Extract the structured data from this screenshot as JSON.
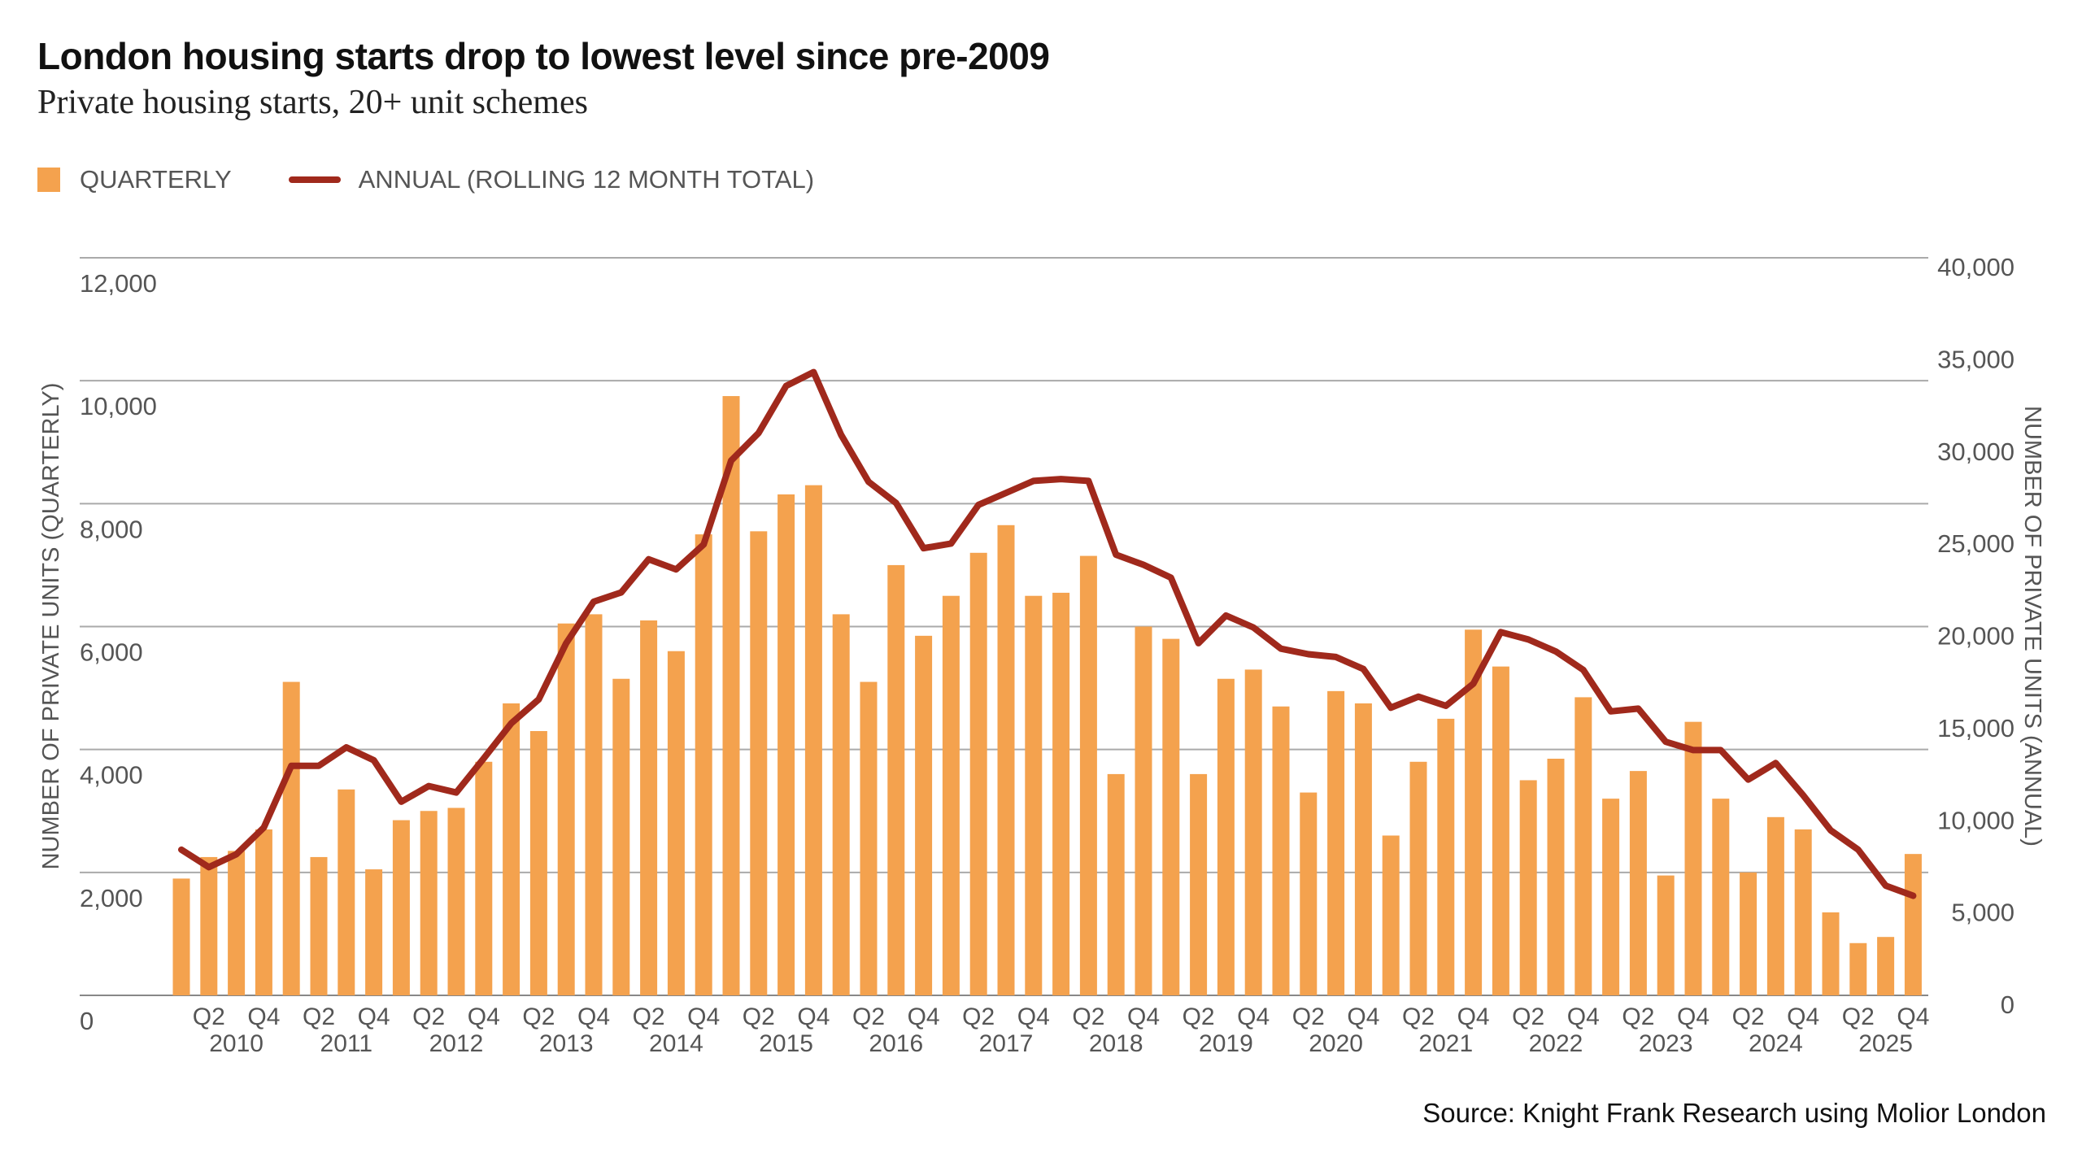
{
  "title": "London housing starts drop to lowest level since pre-2009",
  "subtitle": "Private housing starts, 20+ unit schemes",
  "source": "Source: Knight Frank Research using Molior London",
  "colors": {
    "quarterly": "#F4A24E",
    "annual": "#A0291C",
    "grid": "#999999",
    "text": "#555555"
  },
  "chart_data": {
    "type": "bar+line",
    "legend_position": "top-left",
    "grid": true,
    "categories": [
      "2010 Q1",
      "2010 Q2",
      "2010 Q3",
      "2010 Q4",
      "2011 Q1",
      "2011 Q2",
      "2011 Q3",
      "2011 Q4",
      "2012 Q1",
      "2012 Q2",
      "2012 Q3",
      "2012 Q4",
      "2013 Q1",
      "2013 Q2",
      "2013 Q3",
      "2013 Q4",
      "2014 Q1",
      "2014 Q2",
      "2014 Q3",
      "2014 Q4",
      "2015 Q1",
      "2015 Q2",
      "2015 Q3",
      "2015 Q4",
      "2016 Q1",
      "2016 Q2",
      "2016 Q3",
      "2016 Q4",
      "2017 Q1",
      "2017 Q2",
      "2017 Q3",
      "2017 Q4",
      "2018 Q1",
      "2018 Q2",
      "2018 Q3",
      "2018 Q4",
      "2019 Q1",
      "2019 Q2",
      "2019 Q3",
      "2019 Q4",
      "2020 Q1",
      "2020 Q2",
      "2020 Q3",
      "2020 Q4",
      "2021 Q1",
      "2021 Q2",
      "2021 Q3",
      "2021 Q4",
      "2022 Q1",
      "2022 Q2",
      "2022 Q3",
      "2022 Q4",
      "2023 Q1",
      "2023 Q2",
      "2023 Q3",
      "2023 Q4",
      "2024 Q1",
      "2024 Q2",
      "2024 Q3",
      "2024 Q4",
      "2025 Q1",
      "2025 Q2",
      "2025 Q3",
      "2025 Q4"
    ],
    "x_quarter_labels": [
      "Q2",
      "Q4"
    ],
    "x_year_labels": [
      "2010",
      "2011",
      "2012",
      "2013",
      "2014",
      "2015",
      "2016",
      "2017",
      "2018",
      "2019",
      "2020",
      "2021",
      "2022",
      "2023",
      "2024",
      "2025"
    ],
    "series": [
      {
        "name": "QUARTERLY",
        "type": "bar",
        "axis": "left",
        "values": [
          1900,
          2250,
          2350,
          2700,
          5100,
          2250,
          3350,
          2050,
          2850,
          3000,
          3050,
          3800,
          4750,
          4300,
          6050,
          6200,
          5150,
          6100,
          5600,
          7500,
          9750,
          7550,
          8150,
          8300,
          6200,
          5100,
          7000,
          5850,
          6500,
          7200,
          7650,
          6500,
          6550,
          7150,
          3600,
          6000,
          5800,
          3600,
          5150,
          5300,
          4700,
          3300,
          4950,
          4750,
          2600,
          3800,
          4500,
          5950,
          5350,
          3500,
          3850,
          4850,
          3200,
          3650,
          1950,
          4450,
          3200,
          2000,
          2900,
          2700,
          1350,
          850,
          950,
          2300
        ]
      },
      {
        "name": "ANNUAL (ROLLING 12 MONTH TOTAL)",
        "type": "line",
        "axis": "right",
        "values": [
          7900,
          6950,
          7650,
          9100,
          12450,
          12450,
          13450,
          12750,
          10500,
          11350,
          11000,
          12850,
          14750,
          16050,
          19100,
          21350,
          21850,
          23650,
          23100,
          24450,
          29000,
          30500,
          33050,
          33800,
          30400,
          27850,
          26700,
          24250,
          24500,
          26600,
          27250,
          27900,
          28000,
          27900,
          23900,
          23350,
          22650,
          19100,
          20600,
          19950,
          18800,
          18500,
          18350,
          17700,
          15600,
          16200,
          15700,
          16900,
          19700,
          19300,
          18650,
          17650,
          15400,
          15550,
          13750,
          13300,
          13300,
          11700,
          12600,
          10850,
          8950,
          7900,
          5950,
          5400
        ]
      }
    ],
    "ylabel_left": "NUMBER OF PRIVATE UNITS (QUARTERLY)",
    "ylabel_right": "NUMBER OF PRIVATE UNITS (ANNUAL)",
    "ylim_left": [
      0,
      12000
    ],
    "ylim_right": [
      0,
      40000
    ],
    "yticks_left": [
      "0",
      "2,000",
      "4,000",
      "6,000",
      "8,000",
      "10,000",
      "12,000"
    ],
    "yticks_right": [
      "0",
      "5,000",
      "10,000",
      "15,000",
      "20,000",
      "25,000",
      "30,000",
      "35,000",
      "40,000"
    ]
  }
}
